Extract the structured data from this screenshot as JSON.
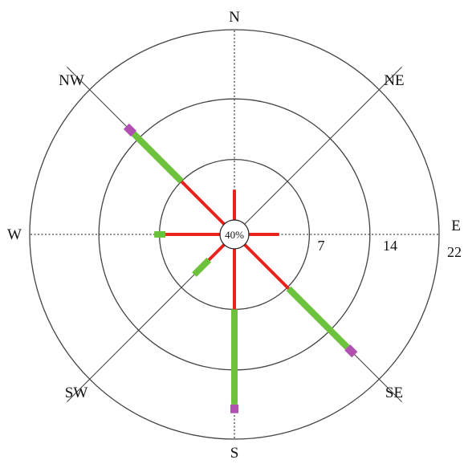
{
  "chart_data": {
    "type": "wind-rose",
    "center_label": "40%",
    "ring_labels": [
      "7",
      "14",
      "22"
    ],
    "rings": [
      7,
      14,
      22
    ],
    "directions": [
      {
        "label": "N",
        "bearing": 0,
        "segments": [
          3.5
        ]
      },
      {
        "label": "NE",
        "bearing": 45,
        "segments": [
          0
        ]
      },
      {
        "label": "E",
        "bearing": 90,
        "segments": [
          3.5
        ]
      },
      {
        "label": "SE",
        "bearing": 135,
        "segments": [
          7.2,
          9.6,
          1.2
        ]
      },
      {
        "label": "S",
        "bearing": 180,
        "segments": [
          7.0,
          11.0,
          1.0
        ]
      },
      {
        "label": "SW",
        "bearing": 225,
        "segments": [
          2.5,
          2.4
        ]
      },
      {
        "label": "W",
        "bearing": 270,
        "segments": [
          6.3,
          1.3
        ]
      },
      {
        "label": "NW",
        "bearing": 315,
        "segments": [
          7.0,
          7.8,
          1.2
        ]
      }
    ],
    "segment_colors": [
      "#e8231f",
      "#6cc23a",
      "#b050b0"
    ],
    "grid": true
  }
}
